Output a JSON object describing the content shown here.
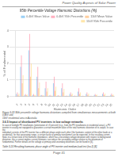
{
  "header": "Power Quality Aspects of Solar Power",
  "chart_data": {
    "type": "bar",
    "title": "95th Percentile Voltage Harmonic Distortions (%)",
    "xlabel": "Harmonic Order",
    "ylabel": "% of Fundamental",
    "categories": [
      2,
      3,
      4,
      5,
      6,
      7,
      8,
      9,
      10,
      11,
      12,
      13,
      14,
      15,
      16,
      17,
      18,
      19,
      20,
      21,
      22,
      23,
      24,
      25
    ],
    "series": [
      {
        "name": "0.4kV Mean Value",
        "values": [
          0.15,
          1.8,
          0.1,
          2.8,
          0.1,
          1.2,
          0.08,
          0.5,
          0.06,
          0.8,
          0.05,
          0.5,
          0.04,
          0.15,
          0.04,
          0.3,
          0.03,
          0.15,
          0.03,
          0.1,
          0.03,
          0.15,
          0.03,
          0.1
        ]
      },
      {
        "name": "0.4kV 95th Percentile",
        "values": [
          0.25,
          2.5,
          0.15,
          3.8,
          0.15,
          1.8,
          0.1,
          0.9,
          0.1,
          1.2,
          0.08,
          0.8,
          0.06,
          0.25,
          0.06,
          0.5,
          0.05,
          0.25,
          0.05,
          0.15,
          0.04,
          0.25,
          0.04,
          0.18
        ]
      },
      {
        "name": "11kV Mean Value",
        "values": [
          0.1,
          0.8,
          0.08,
          1.2,
          0.06,
          0.5,
          0.05,
          0.3,
          0.04,
          0.35,
          0.04,
          0.25,
          0.03,
          0.1,
          0.03,
          0.15,
          0.03,
          0.1,
          0.02,
          0.08,
          0.02,
          0.1,
          0.02,
          0.08
        ]
      },
      {
        "name": "11kV 95th Percentile",
        "values": [
          0.18,
          1.3,
          0.12,
          2.0,
          0.1,
          0.85,
          0.08,
          0.5,
          0.07,
          0.6,
          0.06,
          0.45,
          0.05,
          0.18,
          0.05,
          0.25,
          0.04,
          0.18,
          0.04,
          0.12,
          0.03,
          0.18,
          0.03,
          0.12
        ]
      }
    ],
    "ylim": [
      0,
      4
    ],
    "yticks": [
      0,
      1,
      2,
      3,
      4
    ],
    "grid": true,
    "legend": "upper right"
  },
  "caption": "Figure 3-20 95th percentile voltage harmonic distortions compiled from simultaneous measurements at both 0.4kV and\n11kV residential area in Australia",
  "section": "3.6.5   Impact of distributed PV inverters in low voltage networks",
  "body": [
    "In case of multiple PV installations (penetration of >3 percent) (e.g., from the PV installations in residential areas), a PV",
    "inverter in usually not equipped to guarantee a certain maximum value of the total harmonic distortion of its output. In case the",
    "individual currents of the PV inverter has a different phase angle each other (the harmonic content of the other loads or a",
    "residential), for that uncertainty range, a certain factor of primary transformer can be expected. In that resulting current",
    "flows in a certain total of the harmonic impedance, which has a secondary voltage deviation with respect to background",
    "distortion, this a current implies current harmonic can reduce the secondary voltage relative to the maximum of",
    "fundamental. Further details on the voltage at primary and secondary distortions can be found in [6]."
  ],
  "table_title": "Table 3-10 Resulting harmonic phase angle of PV inverter and medium-load test (no.2) [6]",
  "footer": "Page 41"
}
